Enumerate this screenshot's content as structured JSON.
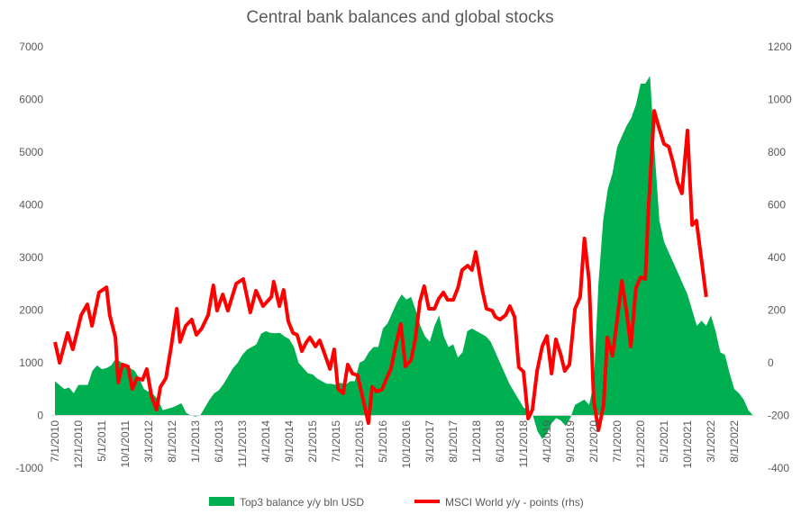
{
  "chart_data": {
    "type": "area+line",
    "title": "Central bank balances and global stocks",
    "x_unit": "months since 7/1/2010",
    "x_tick_labels": [
      "7/1/2010",
      "12/1/2010",
      "5/1/2011",
      "10/1/2011",
      "3/1/2012",
      "8/1/2012",
      "1/1/2013",
      "6/1/2013",
      "11/1/2013",
      "4/1/2014",
      "9/1/2014",
      "2/1/2015",
      "7/1/2015",
      "12/1/2015",
      "5/1/2016",
      "10/1/2016",
      "3/1/2017",
      "8/1/2017",
      "1/1/2018",
      "6/1/2018",
      "11/1/2018",
      "4/1/2019",
      "9/1/2019",
      "2/1/2020",
      "7/1/2020",
      "12/1/2020",
      "5/1/2021",
      "10/1/2021",
      "3/1/2022",
      "8/1/2022"
    ],
    "x_tick_step_months": 5,
    "xlim": [
      0,
      150
    ],
    "y_left": {
      "ylim": [
        -1000,
        7000
      ],
      "ticks": [
        -1000,
        0,
        1000,
        2000,
        3000,
        4000,
        5000,
        6000,
        7000
      ]
    },
    "y_right": {
      "ylim": [
        -400,
        1200
      ],
      "ticks": [
        -400,
        -200,
        0,
        200,
        400,
        600,
        800,
        1000,
        1200
      ]
    },
    "grid": false,
    "legend_position": "bottom",
    "series": [
      {
        "name": "Top3 balance y/y bln USD",
        "type": "area",
        "axis": "left",
        "color": "#00B050",
        "points": [
          [
            0,
            650
          ],
          [
            2,
            500
          ],
          [
            3,
            530
          ],
          [
            4,
            420
          ],
          [
            5,
            580
          ],
          [
            7,
            580
          ],
          [
            8,
            850
          ],
          [
            9,
            950
          ],
          [
            10,
            880
          ],
          [
            11,
            900
          ],
          [
            12,
            950
          ],
          [
            13,
            1080
          ],
          [
            15,
            950
          ],
          [
            17,
            850
          ],
          [
            18,
            700
          ],
          [
            19,
            500
          ],
          [
            20,
            450
          ],
          [
            21,
            400
          ],
          [
            22,
            300
          ],
          [
            23,
            100
          ],
          [
            25,
            150
          ],
          [
            27,
            230
          ],
          [
            28,
            50
          ],
          [
            29,
            0
          ],
          [
            30,
            -20
          ],
          [
            31,
            0
          ],
          [
            32,
            150
          ],
          [
            33,
            300
          ],
          [
            34,
            420
          ],
          [
            35,
            480
          ],
          [
            36,
            600
          ],
          [
            37,
            750
          ],
          [
            38,
            900
          ],
          [
            39,
            1000
          ],
          [
            40,
            1150
          ],
          [
            41,
            1250
          ],
          [
            42,
            1300
          ],
          [
            43,
            1350
          ],
          [
            44,
            1550
          ],
          [
            45,
            1600
          ],
          [
            46,
            1570
          ],
          [
            47,
            1560
          ],
          [
            48,
            1570
          ],
          [
            49,
            1500
          ],
          [
            50,
            1450
          ],
          [
            51,
            1300
          ],
          [
            52,
            1000
          ],
          [
            53,
            900
          ],
          [
            54,
            800
          ],
          [
            55,
            780
          ],
          [
            56,
            700
          ],
          [
            57,
            650
          ],
          [
            58,
            600
          ],
          [
            59,
            600
          ],
          [
            60,
            580
          ],
          [
            61,
            620
          ],
          [
            62,
            580
          ],
          [
            63,
            650
          ],
          [
            64,
            650
          ],
          [
            65,
            1000
          ],
          [
            66,
            1050
          ],
          [
            67,
            1200
          ],
          [
            68,
            1300
          ],
          [
            69,
            1300
          ],
          [
            70,
            1650
          ],
          [
            71,
            1750
          ],
          [
            72,
            1950
          ],
          [
            73,
            2150
          ],
          [
            74,
            2300
          ],
          [
            75,
            2200
          ],
          [
            76,
            2250
          ],
          [
            77,
            2000
          ],
          [
            78,
            1700
          ],
          [
            79,
            1500
          ],
          [
            80,
            1400
          ],
          [
            81,
            1700
          ],
          [
            82,
            1900
          ],
          [
            83,
            1500
          ],
          [
            84,
            1300
          ],
          [
            85,
            1350
          ],
          [
            86,
            1100
          ],
          [
            87,
            1200
          ],
          [
            88,
            1600
          ],
          [
            89,
            1650
          ],
          [
            90,
            1600
          ],
          [
            91,
            1550
          ],
          [
            92,
            1500
          ],
          [
            93,
            1400
          ],
          [
            94,
            1200
          ],
          [
            95,
            1000
          ],
          [
            96,
            800
          ],
          [
            97,
            600
          ],
          [
            98,
            450
          ],
          [
            99,
            300
          ],
          [
            100,
            150
          ],
          [
            101,
            100
          ],
          [
            102,
            0
          ],
          [
            103,
            -300
          ],
          [
            104,
            -450
          ],
          [
            105,
            -350
          ],
          [
            106,
            -150
          ],
          [
            107,
            -50
          ],
          [
            108,
            -100
          ],
          [
            109,
            -200
          ],
          [
            110,
            -50
          ],
          [
            111,
            200
          ],
          [
            112,
            250
          ],
          [
            113,
            300
          ],
          [
            114,
            200
          ],
          [
            115,
            600
          ],
          [
            116,
            2500
          ],
          [
            117,
            3700
          ],
          [
            118,
            4300
          ],
          [
            119,
            4600
          ],
          [
            120,
            5100
          ],
          [
            121,
            5300
          ],
          [
            122,
            5500
          ],
          [
            123,
            5650
          ],
          [
            124,
            5900
          ],
          [
            125,
            6300
          ],
          [
            126,
            6300
          ],
          [
            127,
            6450
          ],
          [
            128,
            5000
          ],
          [
            129,
            3700
          ],
          [
            130,
            3300
          ],
          [
            131,
            3100
          ],
          [
            132,
            2900
          ],
          [
            133,
            2700
          ],
          [
            134,
            2500
          ],
          [
            135,
            2300
          ],
          [
            136,
            2000
          ],
          [
            137,
            1700
          ],
          [
            138,
            1800
          ],
          [
            139,
            1700
          ],
          [
            140,
            1900
          ],
          [
            141,
            1600
          ],
          [
            142,
            1200
          ],
          [
            143,
            1150
          ],
          [
            144,
            800
          ],
          [
            145,
            500
          ],
          [
            146,
            420
          ],
          [
            147,
            300
          ],
          [
            148,
            100
          ],
          [
            149,
            0
          ]
        ]
      },
      {
        "name": "MSCI World y/y - points (rhs)",
        "type": "line",
        "axis": "right",
        "color": "#FF0000",
        "points": [
          [
            0,
            79
          ],
          [
            1,
            0
          ],
          [
            2.7,
            113
          ],
          [
            3.8,
            51
          ],
          [
            5.6,
            181
          ],
          [
            6.9,
            222
          ],
          [
            7.9,
            140
          ],
          [
            9.4,
            267
          ],
          [
            11,
            287
          ],
          [
            11.7,
            181
          ],
          [
            12.9,
            96
          ],
          [
            13.5,
            -75
          ],
          [
            14.4,
            -7
          ],
          [
            15.6,
            -14
          ],
          [
            16.5,
            -100
          ],
          [
            17.5,
            -58
          ],
          [
            18.7,
            -65
          ],
          [
            19.6,
            -24
          ],
          [
            20.6,
            -126
          ],
          [
            21.7,
            -178
          ],
          [
            22.5,
            -92
          ],
          [
            23.7,
            -58
          ],
          [
            24.8,
            62
          ],
          [
            26,
            205
          ],
          [
            26.7,
            79
          ],
          [
            27.9,
            140
          ],
          [
            29.2,
            164
          ],
          [
            30.2,
            106
          ],
          [
            31.3,
            130
          ],
          [
            32.7,
            181
          ],
          [
            33.8,
            294
          ],
          [
            34.6,
            198
          ],
          [
            35.8,
            260
          ],
          [
            36.9,
            198
          ],
          [
            38.7,
            301
          ],
          [
            40.2,
            318
          ],
          [
            41.7,
            191
          ],
          [
            42.9,
            274
          ],
          [
            44.4,
            215
          ],
          [
            46.2,
            250
          ],
          [
            46.7,
            308
          ],
          [
            47.9,
            215
          ],
          [
            48.8,
            277
          ],
          [
            49.8,
            157
          ],
          [
            50.8,
            113
          ],
          [
            51.7,
            106
          ],
          [
            52.7,
            44
          ],
          [
            53.7,
            79
          ],
          [
            54.4,
            96
          ],
          [
            55.6,
            62
          ],
          [
            56.5,
            85
          ],
          [
            57.7,
            27
          ],
          [
            58.7,
            -24
          ],
          [
            59.6,
            51
          ],
          [
            60.4,
            -99
          ],
          [
            61.5,
            -116
          ],
          [
            62.5,
            -7
          ],
          [
            63.5,
            -41
          ],
          [
            64.6,
            -48
          ],
          [
            65.8,
            -143
          ],
          [
            66.9,
            -229
          ],
          [
            67.7,
            -92
          ],
          [
            68.7,
            -109
          ],
          [
            69.8,
            -102
          ],
          [
            70.8,
            -58
          ],
          [
            71.7,
            -24
          ],
          [
            72.7,
            62
          ],
          [
            73.8,
            147
          ],
          [
            74.8,
            -14
          ],
          [
            76,
            10
          ],
          [
            76.9,
            89
          ],
          [
            77.9,
            233
          ],
          [
            78.8,
            291
          ],
          [
            79.8,
            205
          ],
          [
            81,
            205
          ],
          [
            81.9,
            243
          ],
          [
            82.9,
            267
          ],
          [
            83.8,
            239
          ],
          [
            85,
            239
          ],
          [
            86,
            284
          ],
          [
            86.9,
            352
          ],
          [
            88.1,
            369
          ],
          [
            89,
            352
          ],
          [
            89.8,
            421
          ],
          [
            91.2,
            277
          ],
          [
            92.1,
            205
          ],
          [
            93.3,
            198
          ],
          [
            94,
            174
          ],
          [
            95,
            164
          ],
          [
            96.2,
            181
          ],
          [
            97.1,
            215
          ],
          [
            98.1,
            174
          ],
          [
            99,
            -17
          ],
          [
            100,
            -34
          ],
          [
            101,
            -212
          ],
          [
            101.9,
            -178
          ],
          [
            102.9,
            -31
          ],
          [
            104,
            62
          ],
          [
            105,
            102
          ],
          [
            106,
            -41
          ],
          [
            106.9,
            89
          ],
          [
            107.9,
            34
          ],
          [
            108.8,
            -31
          ],
          [
            109.8,
            -7
          ],
          [
            111,
            205
          ],
          [
            112.1,
            250
          ],
          [
            113,
            472
          ],
          [
            114,
            311
          ],
          [
            115,
            -144
          ],
          [
            116,
            -256
          ],
          [
            117.1,
            -161
          ],
          [
            117.9,
            96
          ],
          [
            119,
            27
          ],
          [
            120,
            164
          ],
          [
            121,
            311
          ],
          [
            122.1,
            181
          ],
          [
            122.9,
            62
          ],
          [
            124,
            284
          ],
          [
            125,
            325
          ],
          [
            126,
            318
          ],
          [
            126.7,
            591
          ],
          [
            127.9,
            957
          ],
          [
            128.8,
            899
          ],
          [
            130,
            831
          ],
          [
            131,
            821
          ],
          [
            131.9,
            762
          ],
          [
            132.9,
            684
          ],
          [
            133.8,
            643
          ],
          [
            135,
            882
          ],
          [
            136,
            523
          ],
          [
            136.9,
            540
          ],
          [
            138.1,
            376
          ],
          [
            139,
            250
          ]
        ]
      }
    ]
  }
}
